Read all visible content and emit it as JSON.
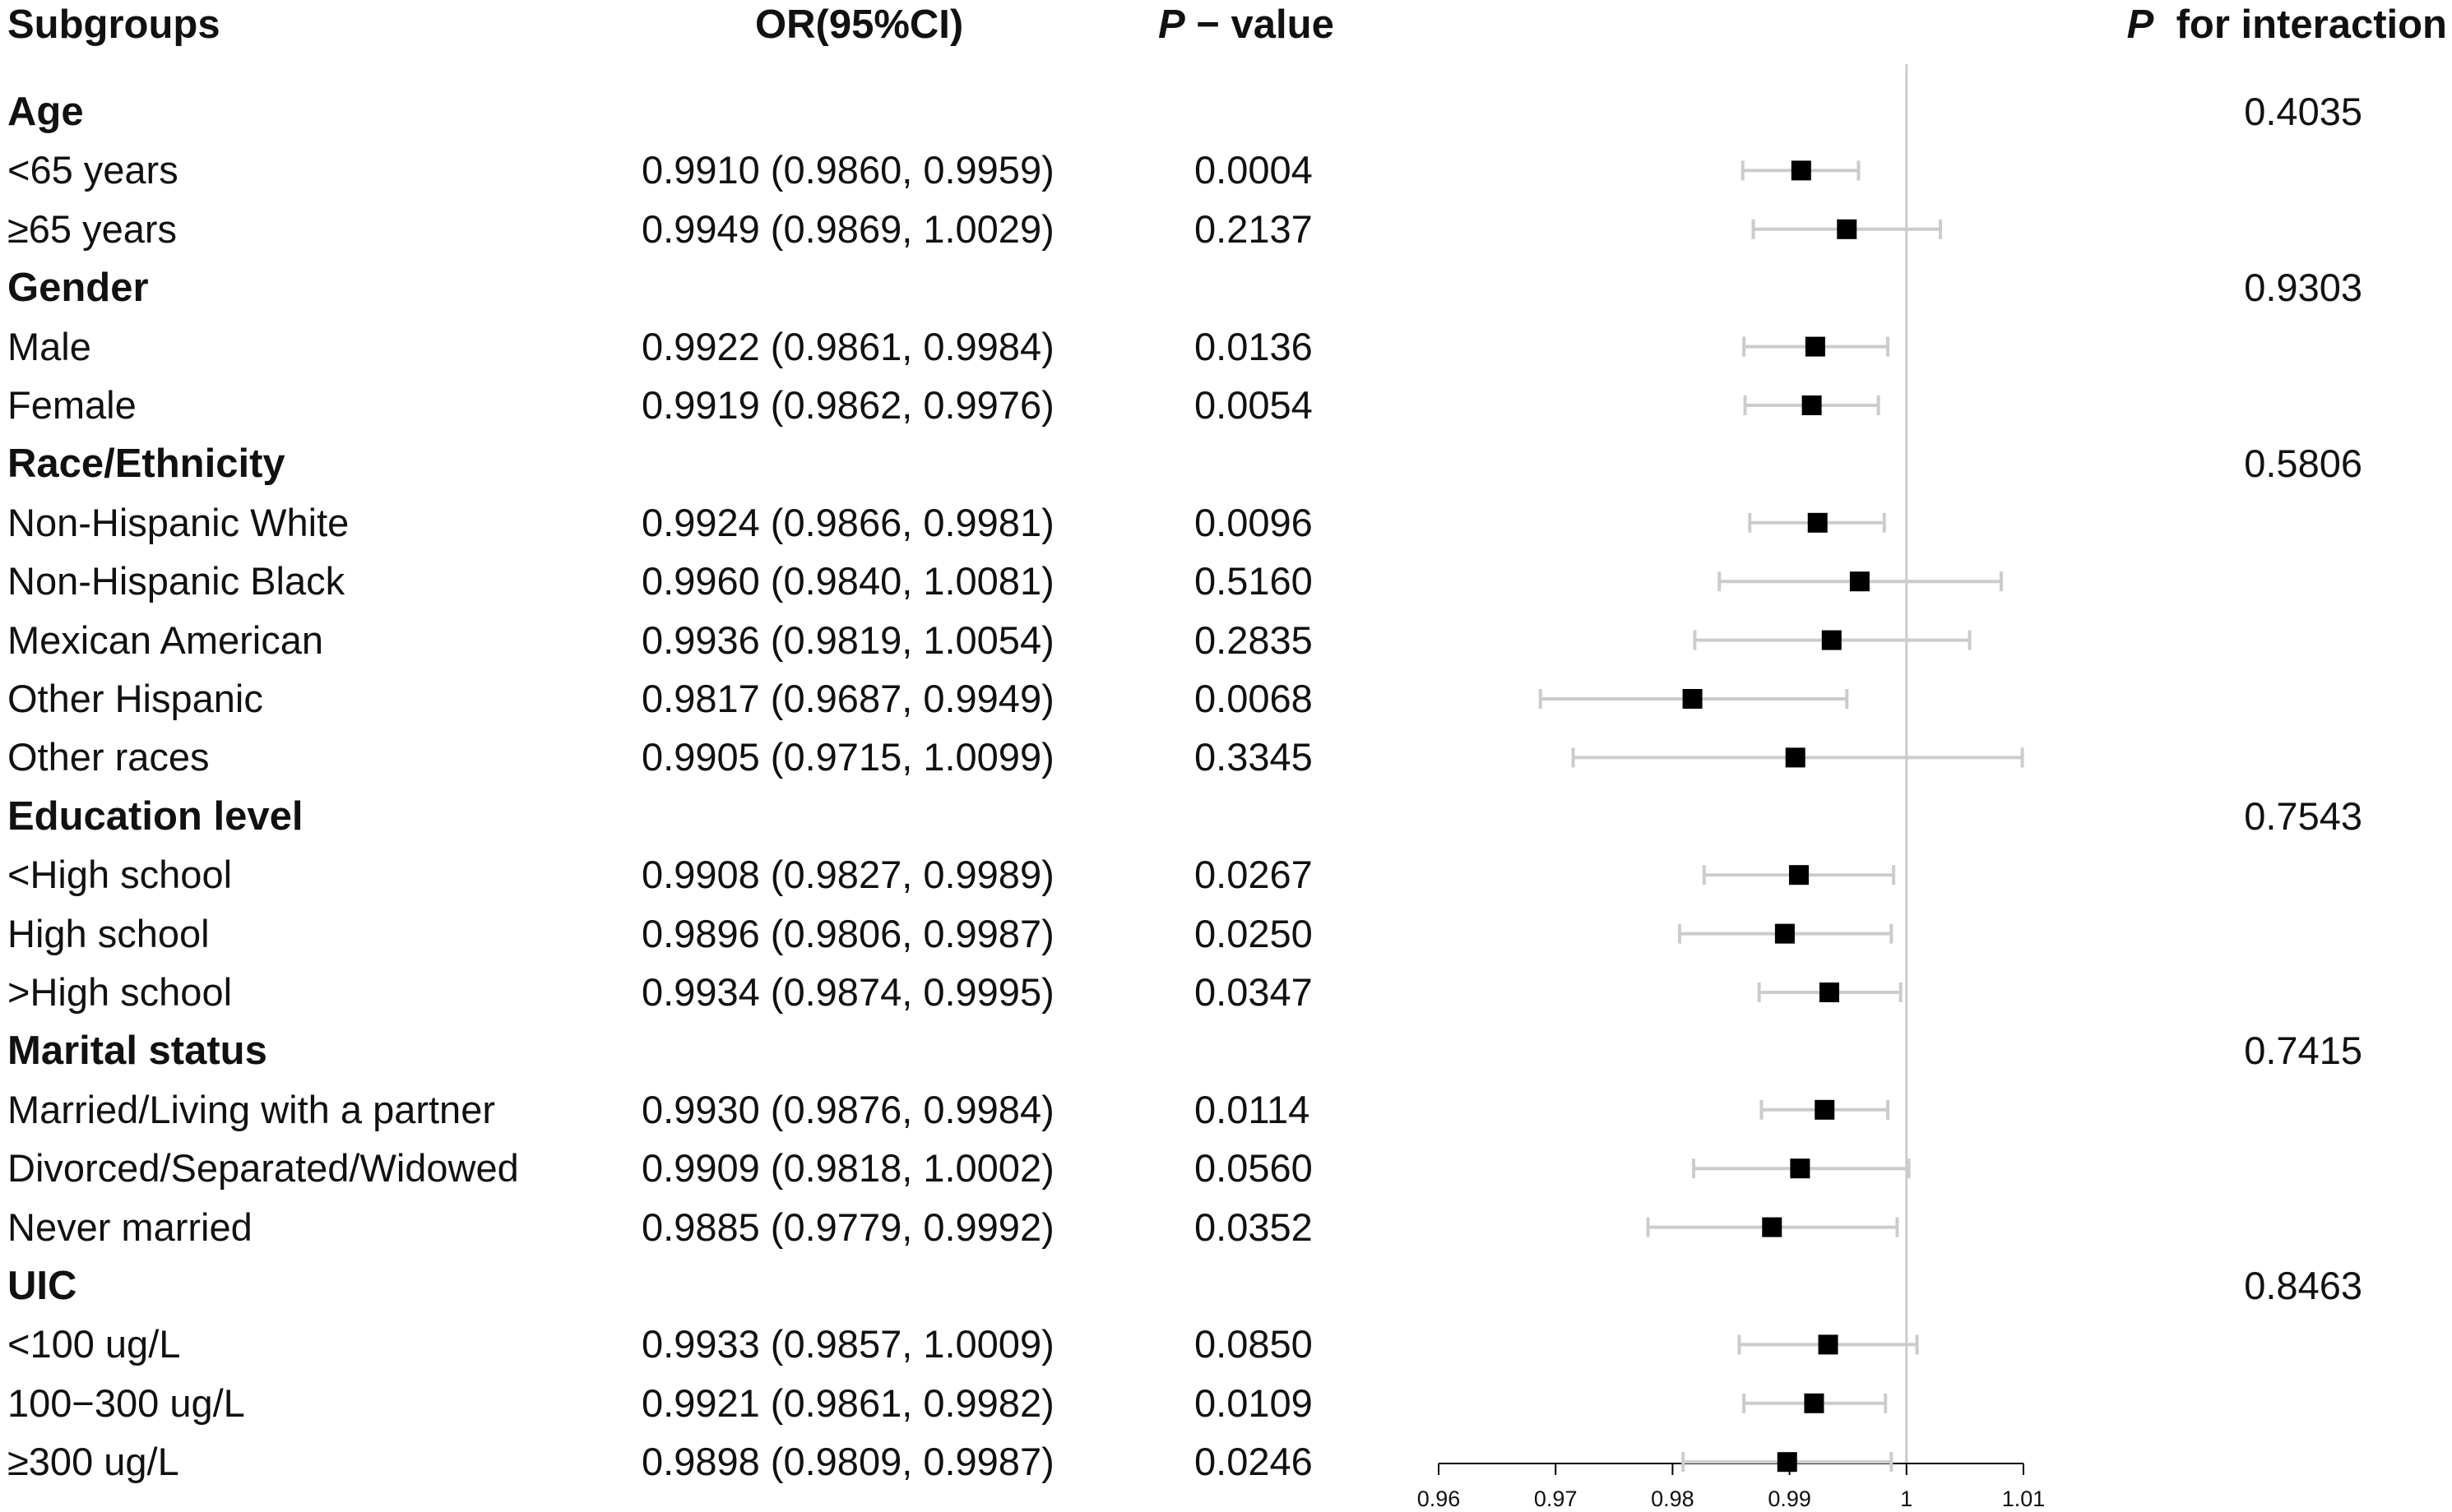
{
  "headers": {
    "subgroups": "Subgroups",
    "or_ci": "OR(95%CI)",
    "p_italic": "P",
    "p_rest": " − value",
    "pint_italic": "P",
    "pint_rest": "for interaction"
  },
  "rows": [
    {
      "kind": "group",
      "label": "Age",
      "pint": "0.4035"
    },
    {
      "kind": "sub",
      "label": "<65 years",
      "or_ci": "0.9910 (0.9860, 0.9959)",
      "p": "0.0004"
    },
    {
      "kind": "sub",
      "label": "≥65 years",
      "or_ci": "0.9949 (0.9869, 1.0029)",
      "p": "0.2137"
    },
    {
      "kind": "group",
      "label": "Gender",
      "pint": "0.9303"
    },
    {
      "kind": "sub",
      "label": "Male",
      "or_ci": "0.9922 (0.9861, 0.9984)",
      "p": "0.0136"
    },
    {
      "kind": "sub",
      "label": "Female",
      "or_ci": "0.9919 (0.9862, 0.9976)",
      "p": "0.0054"
    },
    {
      "kind": "group",
      "label": "Race/Ethnicity",
      "pint": "0.5806"
    },
    {
      "kind": "sub",
      "label": "Non-Hispanic White",
      "or_ci": "0.9924 (0.9866, 0.9981)",
      "p": "0.0096"
    },
    {
      "kind": "sub",
      "label": "Non-Hispanic Black",
      "or_ci": "0.9960 (0.9840, 1.0081)",
      "p": "0.5160"
    },
    {
      "kind": "sub",
      "label": "Mexican American",
      "or_ci": "0.9936 (0.9819, 1.0054)",
      "p": "0.2835"
    },
    {
      "kind": "sub",
      "label": "Other Hispanic",
      "or_ci": "0.9817 (0.9687, 0.9949)",
      "p": "0.0068"
    },
    {
      "kind": "sub",
      "label": "Other races",
      "or_ci": "0.9905 (0.9715, 1.0099)",
      "p": "0.3345"
    },
    {
      "kind": "group",
      "label": "Education level",
      "pint": "0.7543"
    },
    {
      "kind": "sub",
      "label": "<High school",
      "or_ci": "0.9908 (0.9827, 0.9989)",
      "p": "0.0267"
    },
    {
      "kind": "sub",
      "label": "High school",
      "or_ci": "0.9896 (0.9806, 0.9987)",
      "p": "0.0250"
    },
    {
      "kind": "sub",
      "label": ">High school",
      "or_ci": "0.9934 (0.9874, 0.9995)",
      "p": "0.0347"
    },
    {
      "kind": "group",
      "label": "Marital status",
      "pint": "0.7415"
    },
    {
      "kind": "sub",
      "label": "Married/Living with a partner",
      "or_ci": "0.9930 (0.9876, 0.9984)",
      "p": "0.0114"
    },
    {
      "kind": "sub",
      "label": "Divorced/Separated/Widowed",
      "or_ci": "0.9909 (0.9818, 1.0002)",
      "p": "0.0560"
    },
    {
      "kind": "sub",
      "label": "Never married",
      "or_ci": "0.9885 (0.9779, 0.9992)",
      "p": "0.0352"
    },
    {
      "kind": "group",
      "label": "UIC",
      "pint": "0.8463"
    },
    {
      "kind": "sub",
      "label": "<100 ug/L",
      "or_ci": "0.9933 (0.9857, 1.0009)",
      "p": "0.0850"
    },
    {
      "kind": "sub",
      "label": "100−300 ug/L",
      "or_ci": "0.9921 (0.9861, 0.9982)",
      "p": "0.0109"
    },
    {
      "kind": "sub",
      "label": "≥300 ug/L",
      "or_ci": "0.9898 (0.9809, 0.9987)",
      "p": "0.0246"
    }
  ],
  "chart_data": {
    "type": "forest",
    "x_range": [
      0.96,
      1.01
    ],
    "ticks": [
      0.96,
      0.97,
      0.98,
      0.99,
      1,
      1.01
    ],
    "tick_labels": [
      "0.96",
      "0.97",
      "0.98",
      "0.99",
      "1",
      "1.01"
    ],
    "reference_line": 1,
    "colors": {
      "marker": "#000000",
      "ci": "#cccccc",
      "reference": "#cccccc",
      "axis": "#000000"
    },
    "points": [
      {
        "label": "<65 years",
        "or": 0.991,
        "lo": 0.986,
        "hi": 0.9959
      },
      {
        "label": "≥65 years",
        "or": 0.9949,
        "lo": 0.9869,
        "hi": 1.0029
      },
      {
        "label": "Male",
        "or": 0.9922,
        "lo": 0.9861,
        "hi": 0.9984
      },
      {
        "label": "Female",
        "or": 0.9919,
        "lo": 0.9862,
        "hi": 0.9976
      },
      {
        "label": "Non-Hispanic White",
        "or": 0.9924,
        "lo": 0.9866,
        "hi": 0.9981
      },
      {
        "label": "Non-Hispanic Black",
        "or": 0.996,
        "lo": 0.984,
        "hi": 1.0081
      },
      {
        "label": "Mexican American",
        "or": 0.9936,
        "lo": 0.9819,
        "hi": 1.0054
      },
      {
        "label": "Other Hispanic",
        "or": 0.9817,
        "lo": 0.9687,
        "hi": 0.9949
      },
      {
        "label": "Other races",
        "or": 0.9905,
        "lo": 0.9715,
        "hi": 1.0099
      },
      {
        "label": "<High school",
        "or": 0.9908,
        "lo": 0.9827,
        "hi": 0.9989
      },
      {
        "label": "High school",
        "or": 0.9896,
        "lo": 0.9806,
        "hi": 0.9987
      },
      {
        "label": ">High school",
        "or": 0.9934,
        "lo": 0.9874,
        "hi": 0.9995
      },
      {
        "label": "Married/Living with a partner",
        "or": 0.993,
        "lo": 0.9876,
        "hi": 0.9984
      },
      {
        "label": "Divorced/Separated/Widowed",
        "or": 0.9909,
        "lo": 0.9818,
        "hi": 1.0002
      },
      {
        "label": "Never married",
        "or": 0.9885,
        "lo": 0.9779,
        "hi": 0.9992
      },
      {
        "label": "<100 ug/L",
        "or": 0.9933,
        "lo": 0.9857,
        "hi": 1.0009
      },
      {
        "label": "100−300 ug/L",
        "or": 0.9921,
        "lo": 0.9861,
        "hi": 0.9982
      },
      {
        "label": "≥300 ug/L",
        "or": 0.9898,
        "lo": 0.9809,
        "hi": 0.9987
      }
    ]
  }
}
